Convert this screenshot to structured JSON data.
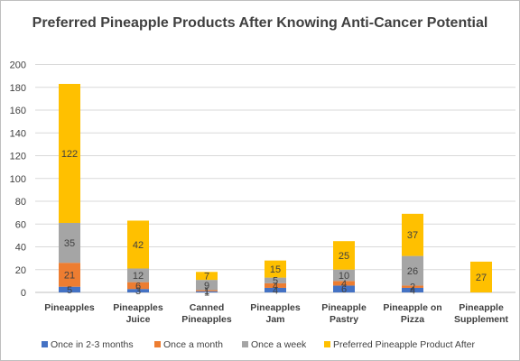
{
  "chart_data": {
    "type": "bar",
    "stacked": true,
    "title": "Preferred Pineapple Products After Knowing Anti-Cancer Potential",
    "categories": [
      [
        "Pineapples"
      ],
      [
        "Pineapples",
        "Juice"
      ],
      [
        "Canned",
        "Pineapples"
      ],
      [
        "Pineapples",
        "Jam"
      ],
      [
        "Pineapple",
        "Pastry"
      ],
      [
        "Pineapple on",
        "Pizza"
      ],
      [
        "Pineapple",
        "Supplement"
      ]
    ],
    "series": [
      {
        "name": "Once in 2-3 months",
        "color": "#4472c4",
        "values": [
          5,
          3,
          1,
          4,
          6,
          4,
          0
        ],
        "labels": [
          "5",
          "3",
          "1",
          "4",
          "6",
          "4",
          ""
        ]
      },
      {
        "name": "Once a month",
        "color": "#ed7d31",
        "values": [
          21,
          6,
          1,
          4,
          4,
          2,
          0
        ],
        "labels": [
          "21",
          "6",
          "1",
          "4",
          "4",
          "2",
          ""
        ]
      },
      {
        "name": "Once a week",
        "color": "#a5a5a5",
        "values": [
          35,
          12,
          9,
          5,
          10,
          26,
          0
        ],
        "labels": [
          "35",
          "12",
          "9",
          "5",
          "10",
          "26",
          ""
        ]
      },
      {
        "name": "Preferred Pineapple Product After",
        "color": "#ffc000",
        "values": [
          122,
          42,
          7,
          15,
          25,
          37,
          27
        ],
        "labels": [
          "122",
          "42",
          "7",
          "15",
          "25",
          "37",
          "27"
        ]
      }
    ],
    "y_ticks": [
      "0",
      "20",
      "40",
      "60",
      "80",
      "100",
      "120",
      "140",
      "160",
      "180",
      "200"
    ],
    "ylim": [
      0,
      200
    ],
    "grid": true,
    "legend": "bottom"
  }
}
